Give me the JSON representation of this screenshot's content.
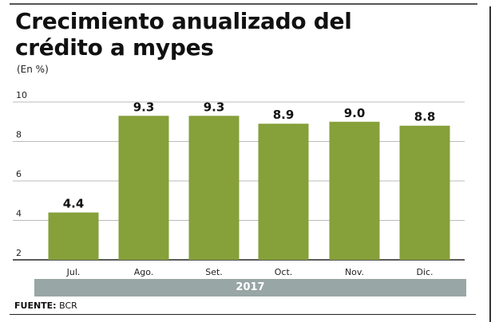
{
  "chart_data": {
    "type": "bar",
    "title": "Crecimiento anualizado del crédito a mypes",
    "unit_label": "(En %)",
    "categories": [
      "Jul.",
      "Ago.",
      "Set.",
      "Oct.",
      "Nov.",
      "Dic."
    ],
    "values": [
      4.4,
      9.3,
      9.3,
      8.9,
      9.0,
      8.8
    ],
    "data_labels": [
      "4.4",
      "9.3",
      "9.3",
      "8.9",
      "9.0",
      "8.8"
    ],
    "yticks": [
      2,
      4,
      6,
      8,
      10
    ],
    "ylim": [
      2,
      10
    ],
    "grid": true,
    "group_label": "2017",
    "bar_color": "#86a03a",
    "source_label": "FUENTE:",
    "source_value": "BCR"
  }
}
